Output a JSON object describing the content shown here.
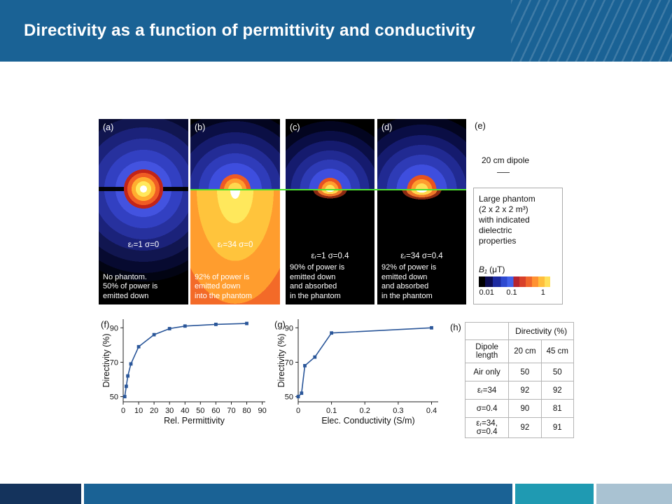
{
  "theme": {
    "header_bg": "#1a6295",
    "footer_navy": "#14335c",
    "footer_blue": "#1a6295",
    "footer_teal": "#1f9ab2",
    "footer_light": "#a9c2d2",
    "accent_green": "#4ce22c",
    "chart_line": "#2a5699"
  },
  "header": {
    "title": "Directivity as a function of permittivity and conductivity"
  },
  "figure": {
    "tags": {
      "a": "(a)",
      "b": "(b)",
      "c": "(c)",
      "d": "(d)",
      "e": "(e)",
      "f": "(f)",
      "g": "(g)",
      "h": "(h)"
    },
    "panels": {
      "a": {
        "params": "εᵣ=1 σ=0",
        "caption": "No phantom.\n50% of power is\nemitted down"
      },
      "b": {
        "params": "εᵣ=34 σ=0",
        "caption": "92% of power is\nemitted down\ninto the phantom"
      },
      "c": {
        "params": "εᵣ=1 σ=0.4",
        "caption": "90% of power is\nemitted down\nand absorbed\nin the phantom"
      },
      "d": {
        "params": "εᵣ=34 σ=0.4",
        "caption": "92% of power is\nemitted down\nand absorbed\nin the phantom"
      }
    },
    "e": {
      "dipole_label": "20 cm dipole",
      "phantom_text": "Large phantom\n(2 x 2 x 2 m³)\nwith indicated\ndielectric\nproperties",
      "colorbar_symbol": "B₁",
      "colorbar_unit": "(μT)",
      "colorbar_ticks": [
        "0.01",
        "0.1",
        "1"
      ]
    }
  },
  "chart_data": [
    {
      "type": "line",
      "panel": "f",
      "xlabel": "Rel. Permittivity",
      "ylabel": "Directivity (%)",
      "x": [
        1,
        2,
        3,
        5,
        10,
        20,
        30,
        40,
        60,
        80
      ],
      "y": [
        50,
        56,
        62,
        69,
        79,
        86,
        89.5,
        91,
        92,
        92.5
      ],
      "xticks": [
        0,
        10,
        20,
        30,
        40,
        50,
        60,
        70,
        80,
        90
      ],
      "yticks": [
        50,
        70,
        90
      ],
      "xlim": [
        0,
        92
      ],
      "ylim": [
        47,
        95
      ],
      "grid": false,
      "legend": "none"
    },
    {
      "type": "line",
      "panel": "g",
      "xlabel": "Elec. Conductivity (S/m)",
      "ylabel": "Directivity (%)",
      "x": [
        0,
        0.01,
        0.02,
        0.05,
        0.1,
        0.4
      ],
      "y": [
        50,
        52,
        68,
        73,
        87,
        90
      ],
      "xticks": [
        0,
        0.1,
        0.2,
        0.3,
        0.4
      ],
      "yticks": [
        50,
        70,
        90
      ],
      "xlim": [
        0,
        0.42
      ],
      "ylim": [
        47,
        95
      ],
      "grid": false,
      "legend": "none"
    },
    {
      "type": "table",
      "panel": "h",
      "title": "Directivity (%)",
      "row_header": "Dipole length",
      "columns": [
        "20 cm",
        "45 cm"
      ],
      "rows": [
        {
          "label": "Air only",
          "values": [
            "50",
            "50"
          ]
        },
        {
          "label": "εᵣ=34",
          "values": [
            "92",
            "92"
          ]
        },
        {
          "label": "σ=0.4",
          "values": [
            "90",
            "81"
          ]
        },
        {
          "label": "εᵣ=34,\nσ=0.4",
          "values": [
            "92",
            "91"
          ]
        }
      ]
    }
  ]
}
